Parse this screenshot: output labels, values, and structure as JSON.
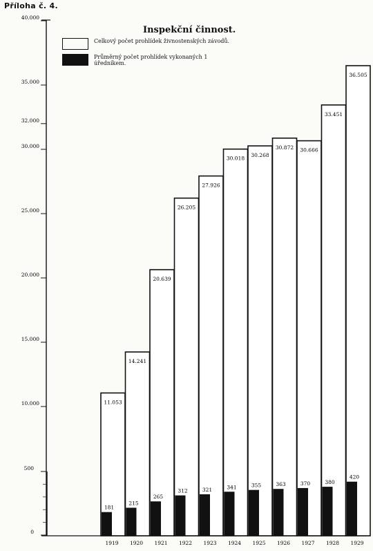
{
  "page_label": "Příloha č. 4.",
  "chart_data": {
    "type": "bar",
    "title": "Inspekční činnost.",
    "categories": [
      "1919",
      "1920",
      "1921",
      "1922",
      "1923",
      "1924",
      "1925",
      "1926",
      "1927",
      "1928",
      "1929"
    ],
    "series": [
      {
        "name": "Celkový počet prohlídek živnostenských závodů.",
        "style": "hollow",
        "values": [
          11053,
          14241,
          20639,
          26205,
          27926,
          30018,
          30268,
          30872,
          30666,
          33451,
          36505
        ],
        "labels": [
          "11.053",
          "14.241",
          "20.639",
          "26.205",
          "27.926",
          "30.018",
          "30.268",
          "30.872",
          "30.666",
          "33.451",
          "36.505"
        ]
      },
      {
        "name": "Průměrný počet prohlídek vykonaných 1 úředníkem.",
        "style": "filled",
        "values": [
          181,
          215,
          265,
          312,
          321,
          341,
          355,
          363,
          370,
          380,
          420
        ],
        "labels": [
          "181",
          "215",
          "265",
          "312",
          "321",
          "341",
          "355",
          "363",
          "370",
          "380",
          "420"
        ]
      }
    ],
    "y_axis": {
      "upper_scale": {
        "range": [
          10000,
          40000
        ],
        "ticks": [
          {
            "value": 10000,
            "label": "10.000"
          },
          {
            "value": 15000,
            "label": "15.000"
          },
          {
            "value": 20000,
            "label": "20.000"
          },
          {
            "value": 25000,
            "label": "25.000"
          },
          {
            "value": 30000,
            "label": "30.000"
          },
          {
            "value": 32000,
            "label": "32.000"
          },
          {
            "value": 35000,
            "label": "35.000"
          },
          {
            "value": 40000,
            "label": "40.000"
          }
        ]
      },
      "lower_scale": {
        "range": [
          0,
          500
        ],
        "ticks": [
          {
            "value": 0,
            "label": "0"
          },
          {
            "value": 500,
            "label": "500"
          }
        ]
      }
    },
    "legend_position": "top-right",
    "grid": false
  }
}
